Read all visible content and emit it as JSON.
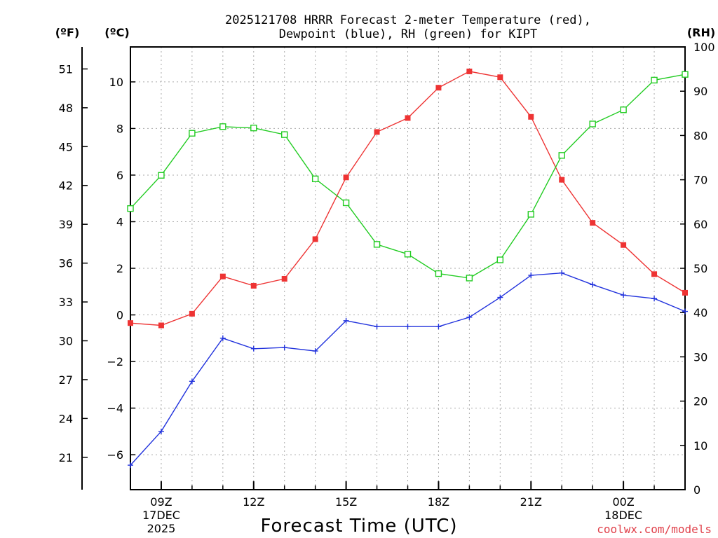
{
  "chart_data": {
    "type": "line",
    "title_line1": "2025121708 HRRR Forecast 2-meter Temperature (red),",
    "title_line2": "Dewpoint (blue), RH (green) for KIPT",
    "xlabel": "Forecast Time (UTC)",
    "unit_f": "(ºF)",
    "unit_c": "(ºC)",
    "unit_rh": "(RH)",
    "watermark": "coolwx.com/models",
    "colors": {
      "temperature": "#ee3333",
      "dewpoint": "#2233dd",
      "rh": "#22cc22",
      "grid": "#aaaaaa"
    },
    "hours": [
      8,
      9,
      10,
      11,
      12,
      13,
      14,
      15,
      16,
      17,
      18,
      19,
      20,
      21,
      22,
      23,
      24,
      25,
      26
    ],
    "xlim": [
      8,
      26
    ],
    "x_ticks": [
      {
        "hour": 9,
        "lines": [
          "09Z",
          "17DEC",
          "2025"
        ]
      },
      {
        "hour": 12,
        "lines": [
          "12Z"
        ]
      },
      {
        "hour": 15,
        "lines": [
          "15Z"
        ]
      },
      {
        "hour": 18,
        "lines": [
          "18Z"
        ]
      },
      {
        "hour": 21,
        "lines": [
          "21Z"
        ]
      },
      {
        "hour": 24,
        "lines": [
          "00Z",
          "18DEC"
        ]
      }
    ],
    "ylim_c": [
      -7.5,
      11.5
    ],
    "yticks_c": [
      -6,
      -4,
      -2,
      0,
      2,
      4,
      6,
      8,
      10
    ],
    "yticks_f": [
      21,
      24,
      27,
      30,
      33,
      36,
      39,
      42,
      45,
      48,
      51
    ],
    "ylim_rh": [
      0,
      100
    ],
    "yticks_rh": [
      0,
      10,
      20,
      30,
      40,
      50,
      60,
      70,
      80,
      90,
      100
    ],
    "series": [
      {
        "name": "Temperature",
        "unit": "C",
        "marker": "filled-square",
        "values": [
          -0.35,
          -0.45,
          0.05,
          1.65,
          1.25,
          1.55,
          3.25,
          5.9,
          7.85,
          8.45,
          9.75,
          10.45,
          10.2,
          8.5,
          5.8,
          3.95,
          3.0,
          1.75,
          0.95
        ]
      },
      {
        "name": "Dewpoint",
        "unit": "C",
        "marker": "plus",
        "values": [
          -6.45,
          -5.0,
          -2.85,
          -1.0,
          -1.45,
          -1.4,
          -1.55,
          -0.25,
          -0.5,
          -0.5,
          -0.5,
          -0.1,
          0.75,
          1.7,
          1.8,
          1.3,
          0.85,
          0.7,
          0.15
        ]
      },
      {
        "name": "RH",
        "unit": "%",
        "marker": "open-square",
        "values": [
          63.5,
          71.0,
          80.5,
          82.0,
          81.7,
          80.2,
          70.2,
          64.8,
          55.4,
          53.2,
          48.8,
          47.8,
          51.9,
          62.2,
          75.5,
          82.6,
          85.8,
          92.5,
          93.8
        ]
      }
    ]
  }
}
